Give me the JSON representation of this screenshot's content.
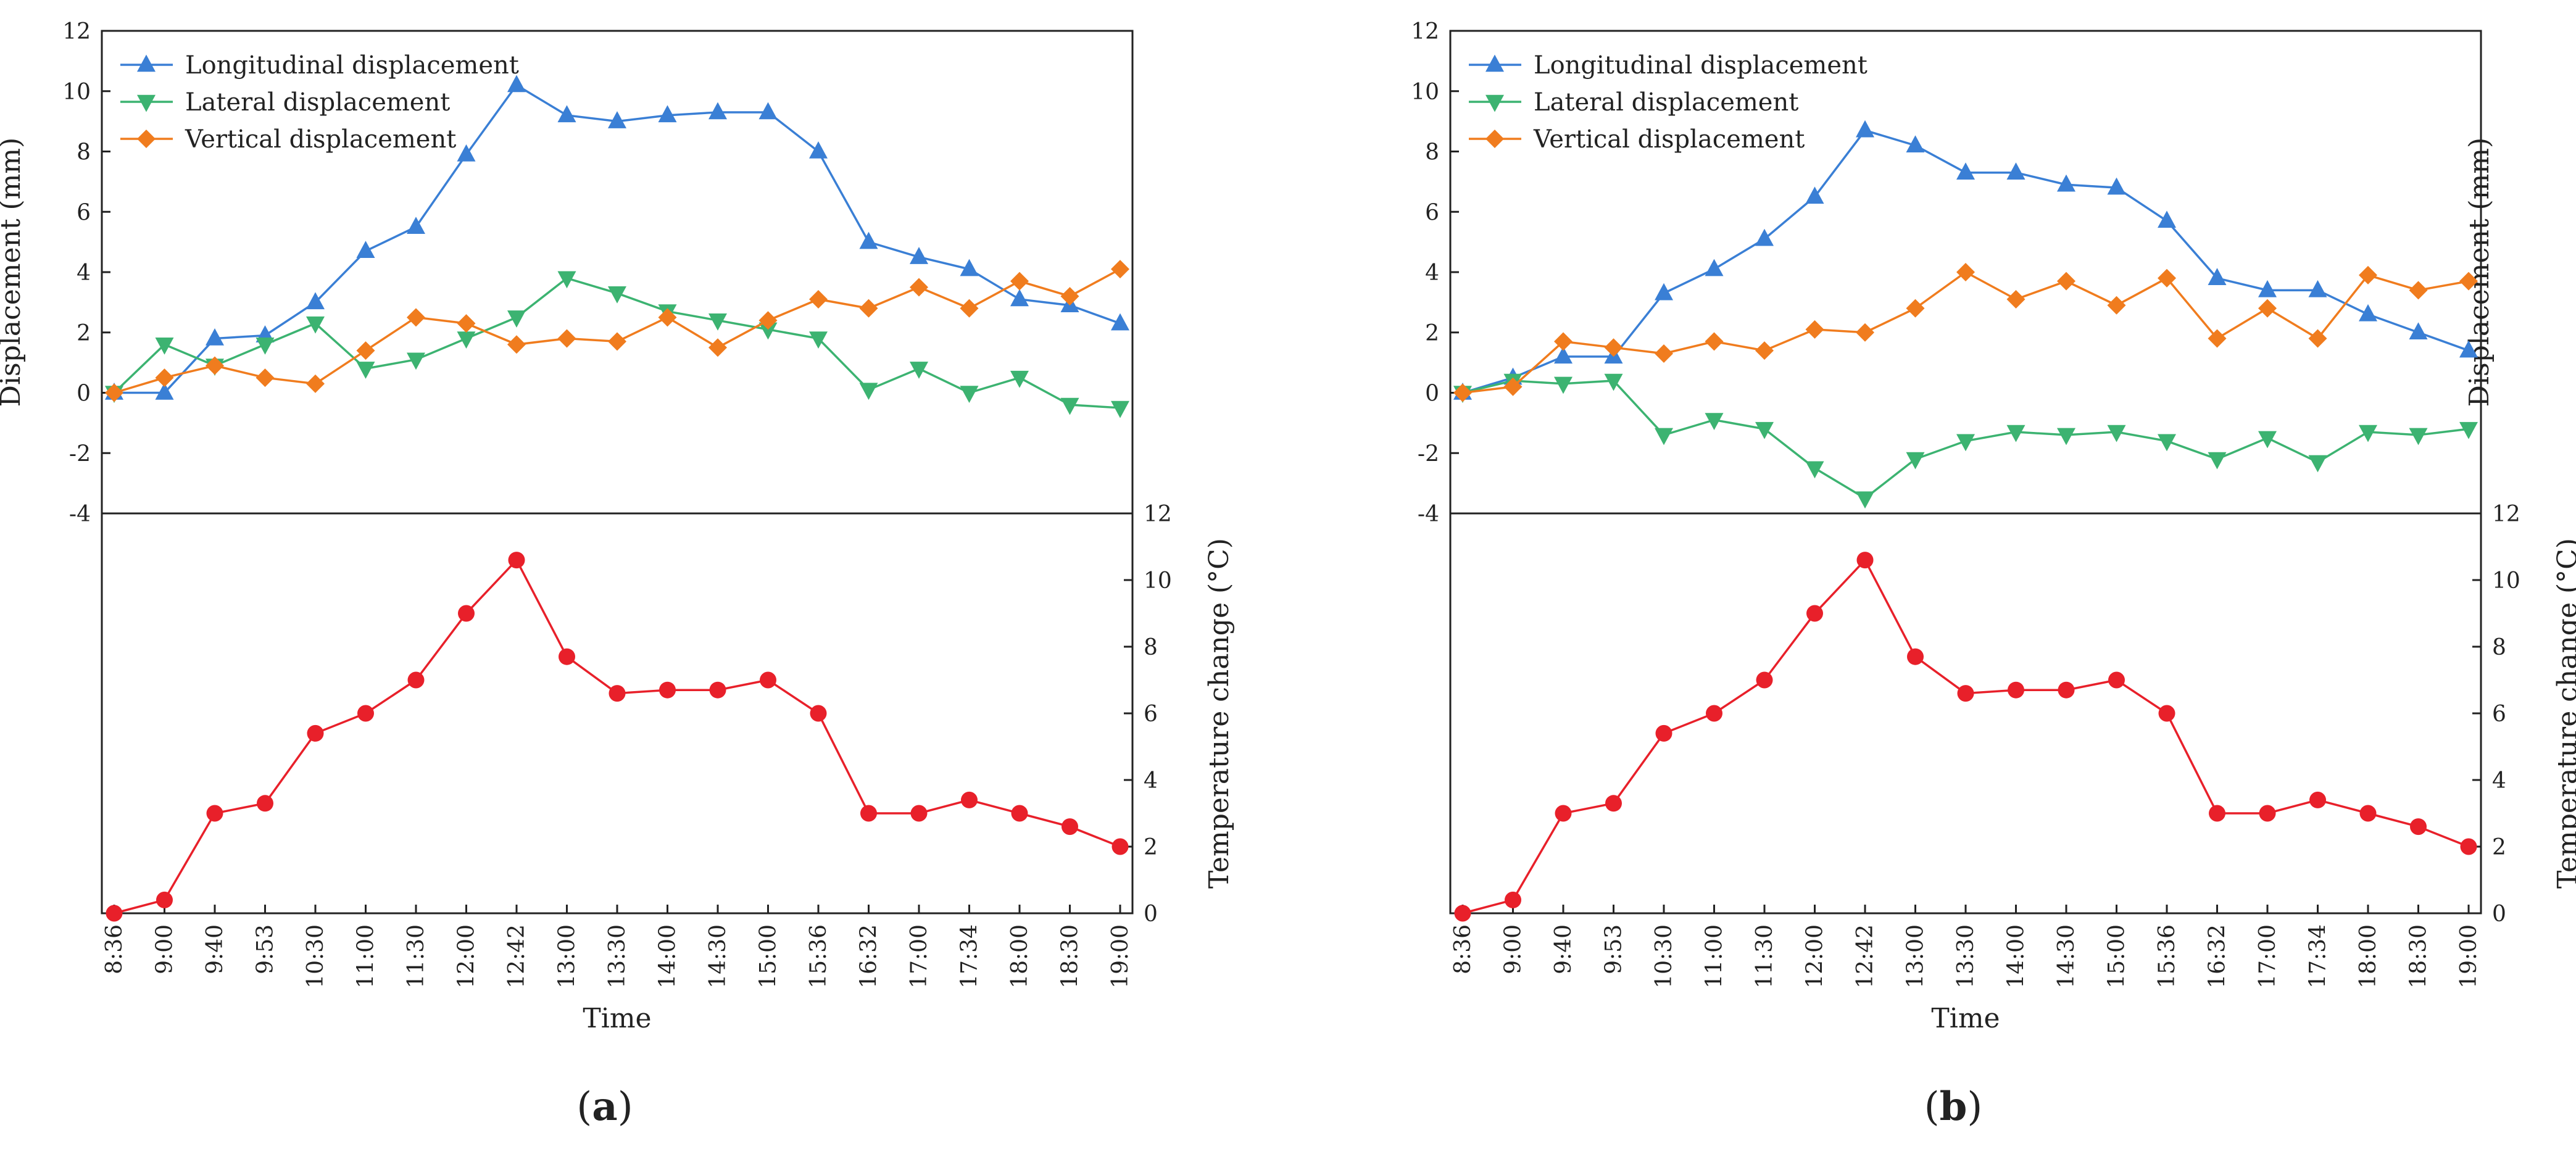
{
  "chart_data": [
    {
      "panel_label": "a",
      "type": "line",
      "categories": [
        "8:36",
        "9:00",
        "9:40",
        "9:53",
        "10:30",
        "11:00",
        "11:30",
        "12:00",
        "12:42",
        "13:00",
        "13:30",
        "14:00",
        "14:30",
        "15:00",
        "15:36",
        "16:32",
        "17:00",
        "17:34",
        "18:00",
        "18:30",
        "19:00"
      ],
      "xlabel": "Time",
      "top": {
        "ylabel": "Displacement (mm)",
        "ylim": [
          -4,
          12
        ],
        "yticks": [
          "-4",
          "-2",
          "0",
          "2",
          "4",
          "6",
          "8",
          "10",
          "12"
        ],
        "legend_position": "top-left",
        "series": [
          {
            "name": "Longitudinal displacement",
            "marker": "triangle-up",
            "color": "#3a7fd5",
            "values": [
              0,
              0,
              1.8,
              1.9,
              3.0,
              4.7,
              5.5,
              7.9,
              10.2,
              9.2,
              9.0,
              9.2,
              9.3,
              9.3,
              8.0,
              5.0,
              4.5,
              4.1,
              3.1,
              2.9,
              2.3
            ]
          },
          {
            "name": "Lateral displacement",
            "marker": "triangle-down",
            "color": "#3cb371",
            "values": [
              0,
              1.6,
              0.9,
              1.6,
              2.3,
              0.8,
              1.1,
              1.8,
              2.5,
              3.8,
              3.3,
              2.7,
              2.4,
              2.1,
              1.8,
              0.1,
              0.8,
              0.0,
              0.5,
              -0.4,
              -0.5
            ]
          },
          {
            "name": "Vertical displacement",
            "marker": "diamond",
            "color": "#f07c1e",
            "values": [
              0,
              0.5,
              0.9,
              0.5,
              0.3,
              1.4,
              2.5,
              2.3,
              1.6,
              1.8,
              1.7,
              2.5,
              1.5,
              2.4,
              3.1,
              2.8,
              3.5,
              2.8,
              3.7,
              3.2,
              4.1
            ]
          }
        ]
      },
      "bottom": {
        "ylabel": "Temperature change (°C)",
        "ylim": [
          0,
          12
        ],
        "yticks": [
          "0",
          "2",
          "4",
          "6",
          "8",
          "10",
          "12"
        ],
        "series": [
          {
            "name": "Temperature change",
            "marker": "circle",
            "color": "#e8202a",
            "values": [
              0,
              0.4,
              3.0,
              3.3,
              5.4,
              6.0,
              7.0,
              9.0,
              10.6,
              7.7,
              6.6,
              6.7,
              6.7,
              7.0,
              6.0,
              3.0,
              3.0,
              3.4,
              3.0,
              2.6,
              2.0
            ]
          }
        ]
      }
    },
    {
      "panel_label": "b",
      "type": "line",
      "categories": [
        "8:36",
        "9:00",
        "9:40",
        "9:53",
        "10:30",
        "11:00",
        "11:30",
        "12:00",
        "12:42",
        "13:00",
        "13:30",
        "14:00",
        "14:30",
        "15:00",
        "15:36",
        "16:32",
        "17:00",
        "17:34",
        "18:00",
        "18:30",
        "19:00"
      ],
      "xlabel": "Time",
      "top": {
        "ylabel": "Displacement (mm)",
        "ylim": [
          -4,
          12
        ],
        "yticks": [
          "-4",
          "-2",
          "0",
          "2",
          "4",
          "6",
          "8",
          "10",
          "12"
        ],
        "legend_position": "top-left",
        "series": [
          {
            "name": "Longitudinal displacement",
            "marker": "triangle-up",
            "color": "#3a7fd5",
            "values": [
              0,
              0.5,
              1.2,
              1.2,
              3.3,
              4.1,
              5.1,
              6.5,
              8.7,
              8.2,
              7.3,
              7.3,
              6.9,
              6.8,
              5.7,
              3.8,
              3.4,
              3.4,
              2.6,
              2.0,
              1.4
            ]
          },
          {
            "name": "Lateral displacement",
            "marker": "triangle-down",
            "color": "#3cb371",
            "values": [
              0,
              0.4,
              0.3,
              0.4,
              -1.4,
              -0.9,
              -1.2,
              -2.5,
              -3.5,
              -2.2,
              -1.6,
              -1.3,
              -1.4,
              -1.3,
              -1.6,
              -2.2,
              -1.5,
              -2.3,
              -1.3,
              -1.4,
              -1.2
            ]
          },
          {
            "name": "Vertical displacement",
            "marker": "diamond",
            "color": "#f07c1e",
            "values": [
              0,
              0.2,
              1.7,
              1.5,
              1.3,
              1.7,
              1.4,
              2.1,
              2.0,
              2.8,
              4.0,
              3.1,
              3.7,
              2.9,
              3.8,
              1.8,
              2.8,
              1.8,
              3.9,
              3.4,
              3.7
            ]
          }
        ]
      },
      "bottom": {
        "ylabel": "Temperature change (°C)",
        "ylim": [
          0,
          12
        ],
        "yticks": [
          "0",
          "2",
          "4",
          "6",
          "8",
          "10",
          "12"
        ],
        "series": [
          {
            "name": "Temperature change",
            "marker": "circle",
            "color": "#e8202a",
            "values": [
              0,
              0.4,
              3.0,
              3.3,
              5.4,
              6.0,
              7.0,
              9.0,
              10.6,
              7.7,
              6.6,
              6.7,
              6.7,
              7.0,
              6.0,
              3.0,
              3.0,
              3.4,
              3.0,
              2.6,
              2.0
            ]
          }
        ]
      }
    }
  ]
}
